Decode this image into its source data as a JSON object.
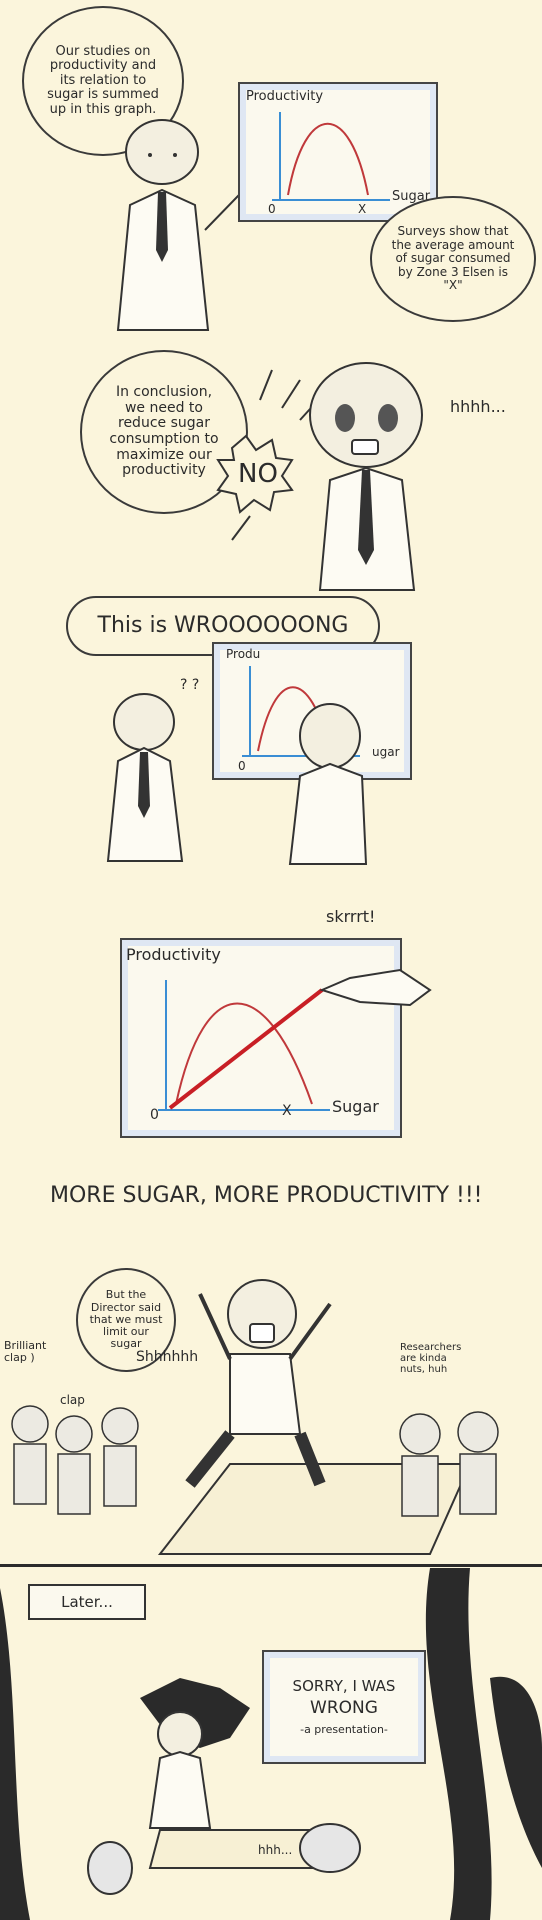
{
  "panel1": {
    "speech": "Our studies on productivity and its relation to sugar is summed up in this graph.",
    "board": {
      "ylabel": "Productivity",
      "xlabel": "Sugar",
      "origin": "0",
      "x_mark": "X"
    },
    "survey": "Surveys show that the average amount of sugar consumed by Zone 3 Elsen is \"X\""
  },
  "panel2": {
    "speech": "In conclusion, we need to reduce sugar consumption to maximize our productivity",
    "shout": "NO",
    "sfx": "hhhh..."
  },
  "panel3": {
    "speech": "This is WROOOOOONG",
    "board_ylabel": "Produ",
    "board_xlabel": "ugar",
    "origin": "0",
    "confused": "? ?"
  },
  "panel4": {
    "sfx": "skrrrt!",
    "ylabel": "Productivity",
    "xlabel": "Sugar",
    "origin": "0",
    "x_mark": "X"
  },
  "panel5": {
    "banner": "MORE SUGAR, MORE PRODUCTIVITY !!!",
    "whisper": "But the Director said that we must limit our sugar",
    "shush": "Shhhhhh",
    "left_note": "Brilliant clap )",
    "clap": "clap",
    "right_note": "Researchers are kinda nuts, huh"
  },
  "panel6": {
    "caption": "Later...",
    "board_text_1": "SORRY, I WAS",
    "board_text_2": "WRONG",
    "board_text_3": "-a presentation-",
    "murmur": "hhh..."
  }
}
